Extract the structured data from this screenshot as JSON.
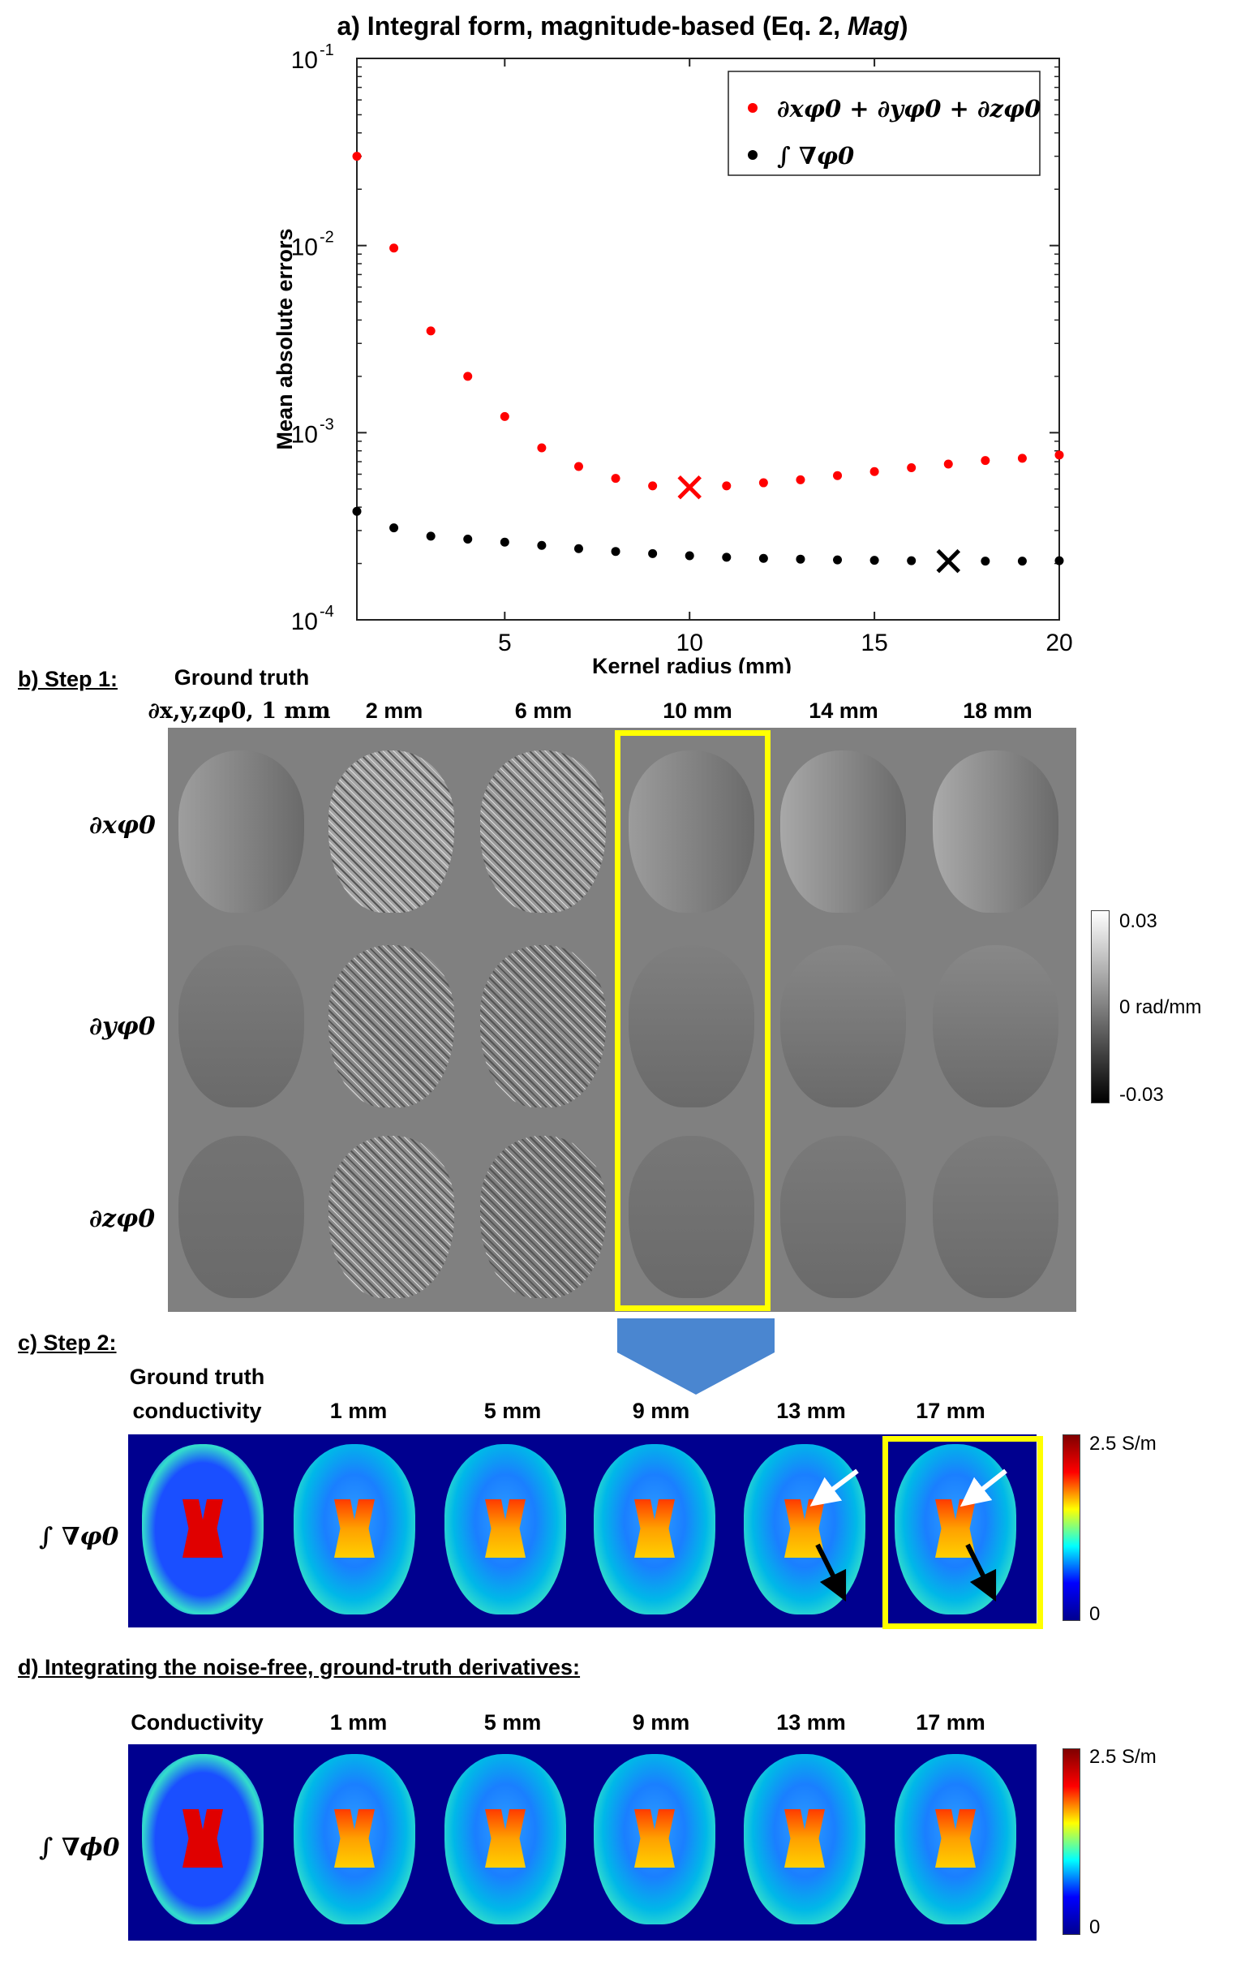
{
  "panel_a": {
    "title_prefix": "a) Integral form, magnitude-based (Eq. 2, ",
    "title_italic": "Mag",
    "title_suffix": ")"
  },
  "chart_data": {
    "type": "scatter",
    "title": "a) Integral form, magnitude-based (Eq. 2, Mag)",
    "xlabel": "Kernel radius (mm)",
    "ylabel": "Mean absolute errors",
    "xlim": [
      1,
      20
    ],
    "ylim": [
      0.0001,
      0.1
    ],
    "yscale": "log",
    "xticks": [
      5,
      10,
      15,
      20
    ],
    "yticks": [
      "10^-4",
      "10^-3",
      "10^-2",
      "10^-1"
    ],
    "legend_placement": "top-right",
    "grid": false,
    "series": [
      {
        "name": "∂xφ0 + ∂yφ0 + ∂zφ0",
        "color": "#ff0000",
        "x": [
          1,
          2,
          3,
          4,
          5,
          6,
          7,
          8,
          9,
          10,
          11,
          12,
          13,
          14,
          15,
          16,
          17,
          18,
          19,
          20
        ],
        "y": [
          0.03,
          0.0097,
          0.0035,
          0.002,
          0.00122,
          0.00083,
          0.00066,
          0.00057,
          0.00052,
          0.00051,
          0.00052,
          0.00054,
          0.00056,
          0.00059,
          0.00062,
          0.00065,
          0.00068,
          0.00071,
          0.00073,
          0.00076
        ],
        "min_marker_x": 10
      },
      {
        "name": "∫ ∇φ0",
        "color": "#000000",
        "x": [
          1,
          2,
          3,
          4,
          5,
          6,
          7,
          8,
          9,
          10,
          11,
          12,
          13,
          14,
          15,
          16,
          17,
          18,
          19,
          20
        ],
        "y": [
          0.00038,
          0.00031,
          0.00028,
          0.00027,
          0.00026,
          0.00025,
          0.00024,
          0.000232,
          0.000226,
          0.00022,
          0.000216,
          0.000213,
          0.000211,
          0.000209,
          0.000208,
          0.000207,
          0.000206,
          0.000206,
          0.000206,
          0.000207
        ],
        "min_marker_x": 17
      }
    ]
  },
  "panel_b": {
    "heading": "b) Step 1:",
    "col_ground_truth_line1": "Ground truth",
    "col_ground_truth_line2": "∂x,y,zφ0, 1 mm",
    "columns": [
      "2 mm",
      "6 mm",
      "10 mm",
      "14 mm",
      "18 mm"
    ],
    "rows": [
      "∂xφ0",
      "∂yφ0",
      "∂zφ0"
    ],
    "colorbar": {
      "max": "0.03",
      "mid": "0 rad/mm",
      "min": "-0.03"
    }
  },
  "panel_c": {
    "heading": "c) Step 2:",
    "col_ground_truth_line1": "Ground truth",
    "col_ground_truth_line2": "conductivity",
    "columns": [
      "1 mm",
      "5 mm",
      "9 mm",
      "13 mm",
      "17 mm"
    ],
    "row": "∫ ∇φ0",
    "colorbar": {
      "max": "2.5 S/m",
      "min": "0"
    }
  },
  "panel_d": {
    "heading": "d) Integrating the noise-free, ground-truth derivatives:",
    "columns": [
      "Conductivity",
      "1 mm",
      "5 mm",
      "9 mm",
      "13 mm",
      "17 mm"
    ],
    "row": "∫ ∇ϕ0",
    "colorbar": {
      "max": "2.5 S/m",
      "min": "0"
    }
  },
  "colors": {
    "red_series": "#ff0000",
    "black_series": "#000000",
    "highlight_box": "#ffff00",
    "arrow": "#4a86d0",
    "panel_gray": "#808080",
    "panel_blue": "#00008f"
  }
}
